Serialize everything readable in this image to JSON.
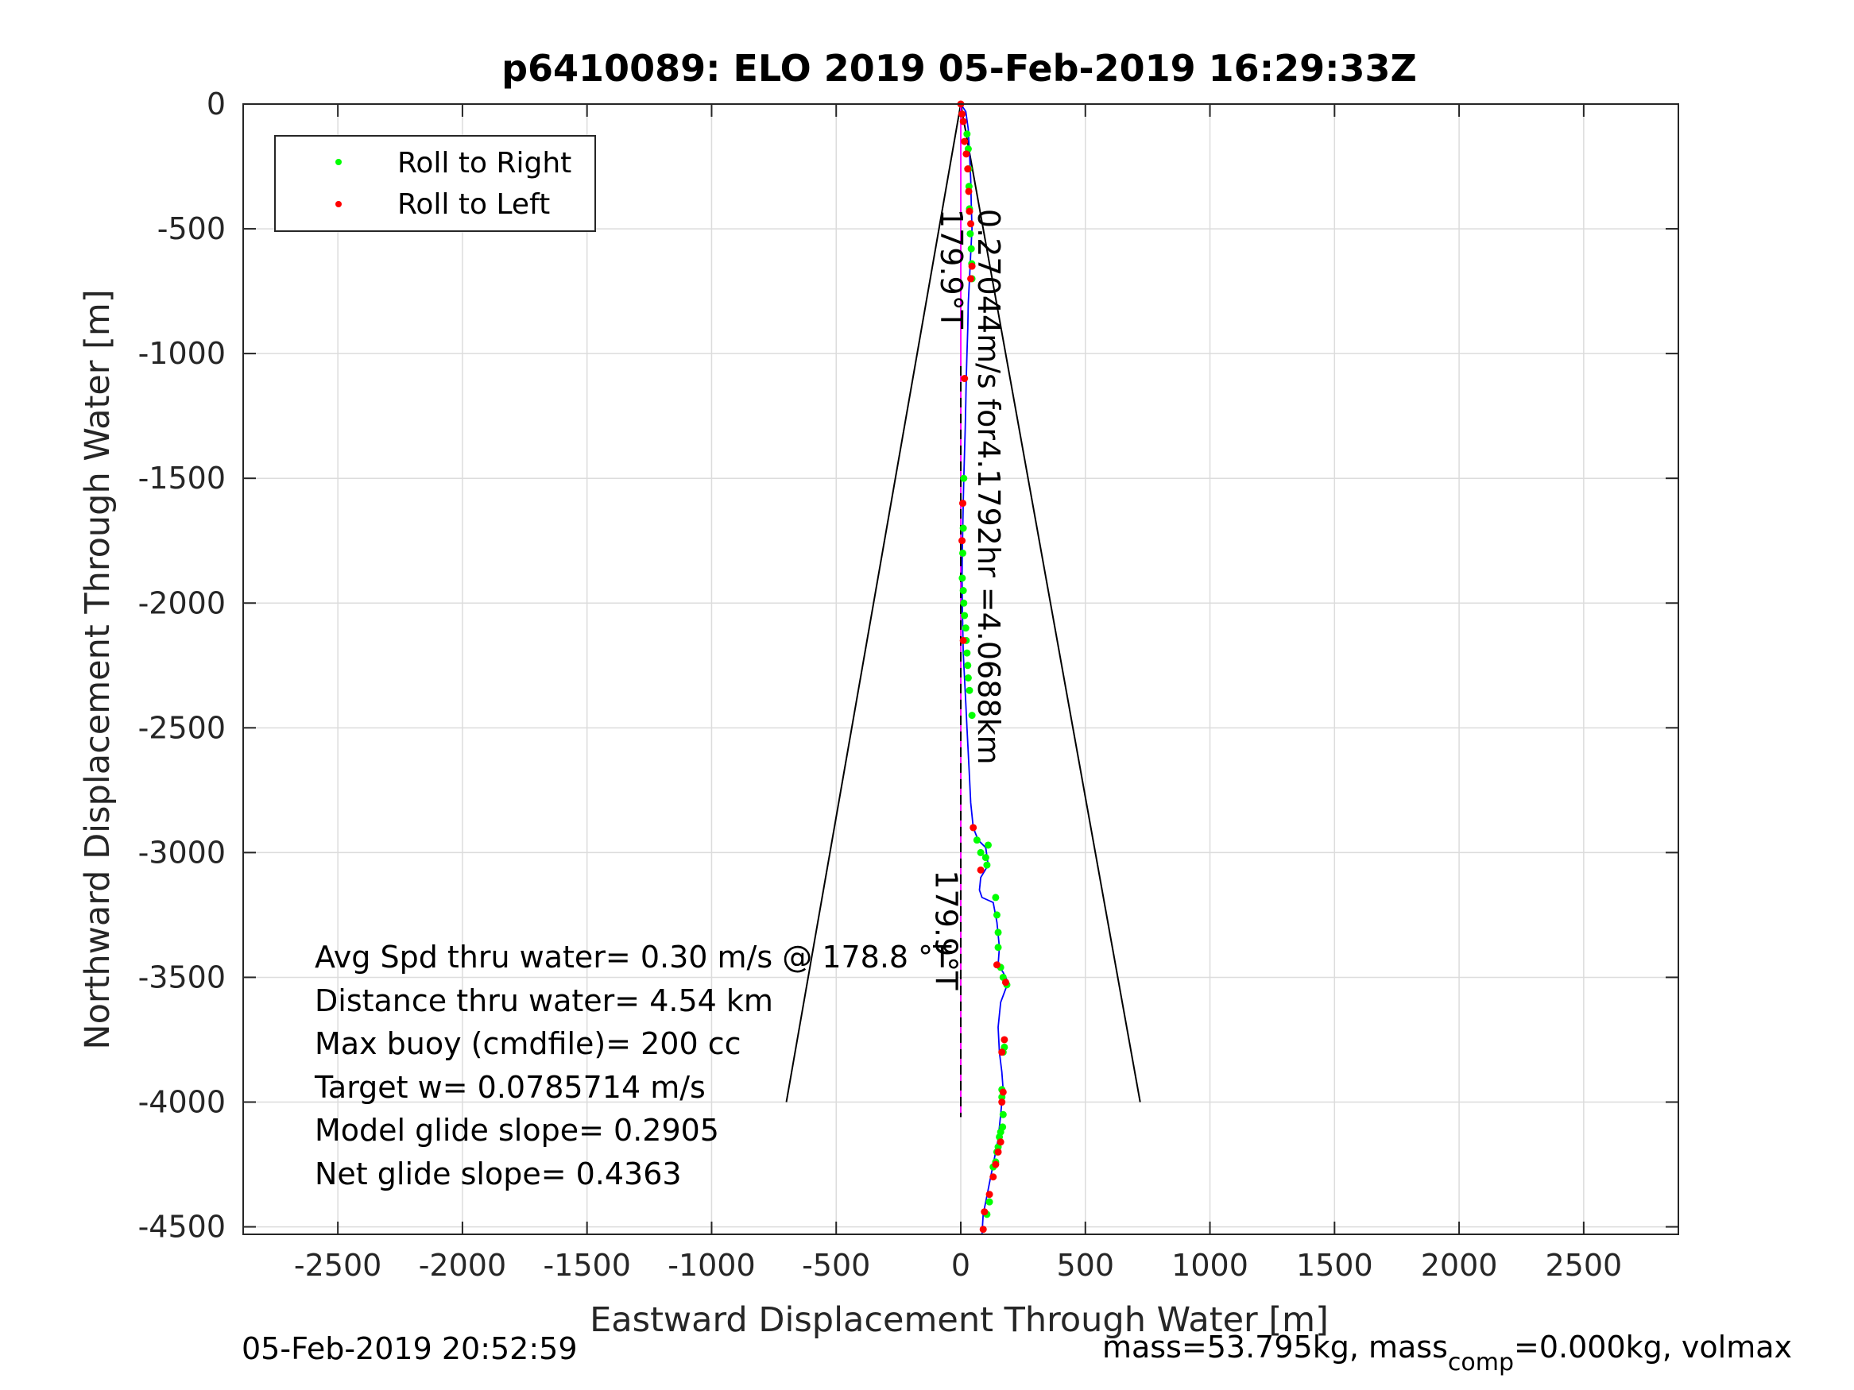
{
  "chart_data": {
    "type": "line",
    "title": "p6410089: ELO 2019 05-Feb-2019 16:29:33Z",
    "xlabel": "Eastward Displacement Through Water [m]",
    "ylabel": "Northward Displacement Through Water [m]",
    "xlim": [
      -2880,
      2880
    ],
    "ylim": [
      -4530,
      0
    ],
    "xticks": [
      -2500,
      -2000,
      -1500,
      -1000,
      -500,
      0,
      500,
      1000,
      1500,
      2000,
      2500
    ],
    "yticks": [
      0,
      -500,
      -1000,
      -1500,
      -2000,
      -2500,
      -3000,
      -3500,
      -4000,
      -4500
    ],
    "grid": true,
    "legend": {
      "placement": "top-left",
      "entries": [
        {
          "label": "Roll to Right",
          "color": "#00ff00"
        },
        {
          "label": "Roll to Left",
          "color": "#ff0000"
        }
      ]
    },
    "series": [
      {
        "name": "track",
        "color": "#0000ff",
        "x": [
          0,
          20,
          30,
          35,
          40,
          42,
          45,
          40,
          35,
          30,
          28,
          25,
          22,
          20,
          18,
          15,
          12,
          10,
          8,
          6,
          5,
          6,
          8,
          10,
          15,
          20,
          25,
          30,
          35,
          40,
          50,
          70,
          100,
          110,
          80,
          75,
          85,
          130,
          145,
          155,
          150,
          170,
          190,
          175,
          160,
          150,
          155,
          165,
          170,
          165,
          160,
          155,
          150,
          140,
          130,
          120,
          110,
          100,
          90,
          85
        ],
        "y": [
          0,
          -30,
          -100,
          -200,
          -300,
          -400,
          -500,
          -600,
          -700,
          -800,
          -900,
          -1000,
          -1100,
          -1200,
          -1300,
          -1400,
          -1500,
          -1600,
          -1700,
          -1800,
          -1900,
          -2000,
          -2100,
          -2200,
          -2300,
          -2400,
          -2500,
          -2600,
          -2700,
          -2800,
          -2900,
          -2950,
          -2980,
          -3050,
          -3100,
          -3150,
          -3180,
          -3200,
          -3280,
          -3380,
          -3450,
          -3480,
          -3520,
          -3560,
          -3600,
          -3700,
          -3800,
          -3880,
          -3950,
          -4000,
          -4050,
          -4100,
          -4150,
          -4200,
          -4250,
          -4300,
          -4350,
          -4400,
          -4450,
          -4530
        ]
      }
    ],
    "roll_right_points": {
      "x": [
        25,
        30,
        32,
        33,
        35,
        38,
        42,
        44,
        45,
        12,
        10,
        8,
        6,
        10,
        12,
        15,
        20,
        22,
        25,
        28,
        30,
        35,
        45,
        65,
        80,
        100,
        110,
        105,
        140,
        145,
        150,
        150,
        160,
        170,
        185,
        175,
        170,
        165,
        165,
        170,
        168,
        160,
        155,
        150,
        145,
        140,
        130,
        115,
        105
      ],
      "y": [
        -120,
        -180,
        -260,
        -330,
        -420,
        -520,
        -580,
        -640,
        -700,
        -1500,
        -1700,
        -1800,
        -1900,
        -1950,
        -2000,
        -2050,
        -2100,
        -2150,
        -2200,
        -2250,
        -2300,
        -2350,
        -2450,
        -2950,
        -3000,
        -3020,
        -2970,
        -3050,
        -3180,
        -3250,
        -3320,
        -3380,
        -3460,
        -3500,
        -3530,
        -3780,
        -3800,
        -3950,
        -3980,
        -4050,
        -4100,
        -4120,
        -4140,
        -4180,
        -4200,
        -4240,
        -4260,
        -4400,
        -4450
      ]
    },
    "roll_left_points": {
      "x": [
        0,
        5,
        10,
        15,
        22,
        28,
        32,
        35,
        40,
        45,
        40,
        15,
        8,
        5,
        10,
        50,
        80,
        145,
        180,
        175,
        165,
        170,
        165,
        160,
        150,
        140,
        130,
        115,
        95,
        90
      ],
      "y": [
        0,
        -40,
        -70,
        -150,
        -200,
        -260,
        -350,
        -430,
        -480,
        -650,
        -700,
        -1100,
        -1600,
        -1750,
        -2150,
        -2900,
        -3070,
        -3450,
        -3520,
        -3750,
        -3800,
        -3960,
        -4000,
        -4160,
        -4200,
        -4250,
        -4300,
        -4370,
        -4440,
        -4510
      ]
    },
    "reference_lines": [
      {
        "x": [
          0,
          -700
        ],
        "y": [
          0,
          -4000
        ],
        "color": "#000000"
      },
      {
        "x": [
          0,
          720
        ],
        "y": [
          0,
          -4000
        ],
        "color": "#000000"
      },
      {
        "x": [
          0,
          0
        ],
        "y": [
          0,
          -4060
        ],
        "color": "#ff00ff"
      },
      {
        "x": [
          0,
          0
        ],
        "y": [
          -1050,
          -4060
        ],
        "color": "#000000",
        "dashed": true
      }
    ],
    "annotations": [
      {
        "text": "179.9°T",
        "x": -80,
        "y": -420,
        "rotate": 90
      },
      {
        "text": "0.27044m/s for4.1792hr =4.0688km",
        "x": 70,
        "y": -420,
        "rotate": 90
      },
      {
        "text": "179.9°T",
        "x": -100,
        "y": -3070,
        "rotate": 90
      }
    ],
    "stats_lines": [
      "Avg Spd thru water=  0.30 m/s @ 178.8 °T",
      "Distance thru water=  4.54 km",
      "Max buoy (cmdfile)= 200 cc",
      "Target w= 0.0785714 m/s",
      "Model glide slope= 0.2905",
      "Net glide slope= 0.4363"
    ]
  },
  "footer": {
    "timestamp": "05-Feb-2019 20:52:59",
    "mass_text_1": "mass=53.795kg, mass",
    "mass_sub": "comp",
    "mass_text_2": "=0.000kg, volmax"
  }
}
